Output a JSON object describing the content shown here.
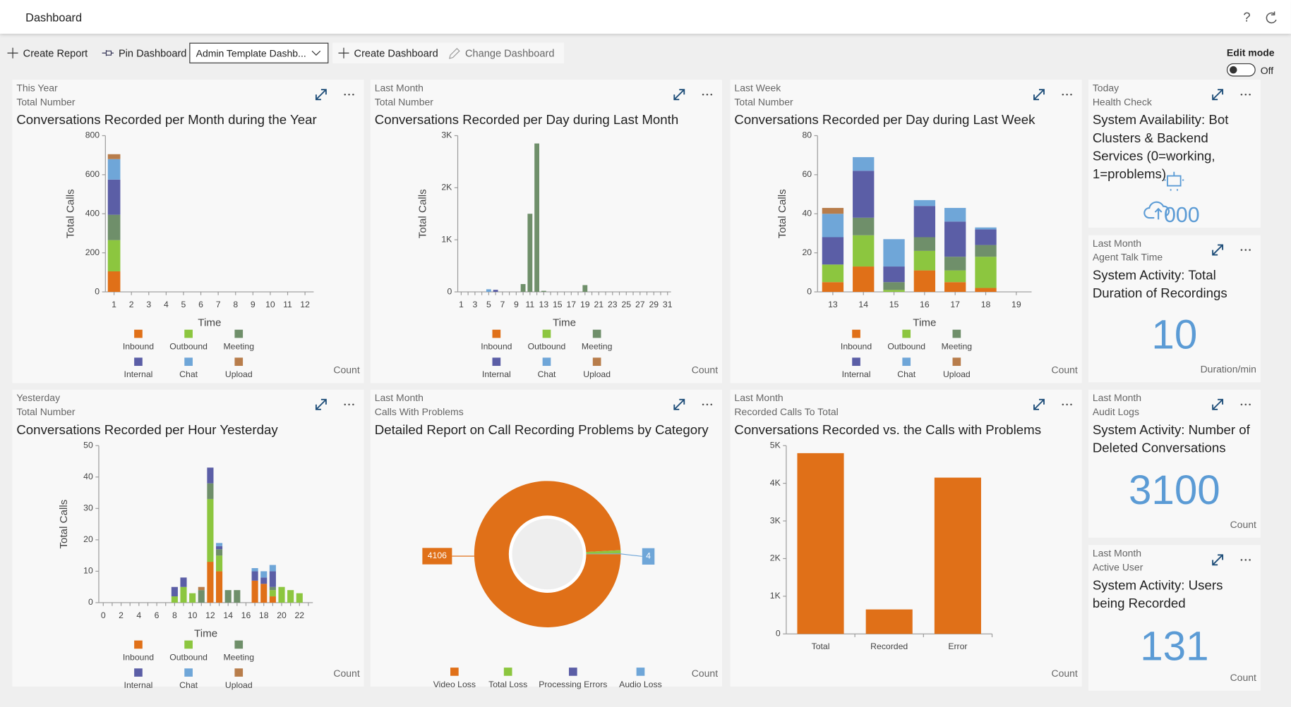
{
  "header": {
    "title": "Dashboard"
  },
  "toolbar": {
    "create_report": "Create Report",
    "pin_dashboard": "Pin Dashboard",
    "dashboard_select": "Admin Template Dashb...",
    "create_dashboard": "Create Dashboard",
    "change_dashboard": "Change Dashboard",
    "edit_mode": "Edit mode",
    "edit_state": "Off"
  },
  "chart_data": [
    {
      "type": "bar",
      "stacked": true,
      "period": "This Year",
      "metric": "Total Number",
      "title": "Conversations Recorded per Month during the Year",
      "x_label": "Time",
      "y_label": "Total Calls",
      "unit": "Count",
      "categories": [
        1,
        2,
        3,
        4,
        5,
        6,
        7,
        8,
        9,
        10,
        11,
        12
      ],
      "series": [
        {
          "name": "Inbound",
          "color": "#e07018",
          "values": [
            105,
            0,
            0,
            0,
            0,
            0,
            0,
            0,
            0,
            0,
            0,
            0
          ]
        },
        {
          "name": "Outbound",
          "color": "#8cc63f",
          "values": [
            160,
            0,
            0,
            0,
            0,
            0,
            0,
            0,
            0,
            0,
            0,
            0
          ]
        },
        {
          "name": "Meeting",
          "color": "#6f8f6a",
          "values": [
            130,
            0,
            0,
            0,
            0,
            0,
            0,
            0,
            0,
            0,
            0,
            0
          ]
        },
        {
          "name": "Internal",
          "color": "#5b5ea6",
          "values": [
            180,
            0,
            0,
            0,
            0,
            0,
            0,
            0,
            0,
            0,
            0,
            0
          ]
        },
        {
          "name": "Chat",
          "color": "#6fa6d8",
          "values": [
            105,
            0,
            0,
            0,
            0,
            0,
            0,
            0,
            0,
            0,
            0,
            0
          ]
        },
        {
          "name": "Upload",
          "color": "#b87d4b",
          "values": [
            25,
            0,
            0,
            0,
            0,
            0,
            0,
            0,
            0,
            0,
            0,
            0
          ]
        }
      ],
      "ylim": [
        0,
        800
      ],
      "yticks": [
        0,
        200,
        400,
        600,
        800
      ],
      "grid": false
    },
    {
      "type": "bar",
      "stacked": true,
      "period": "Last Month",
      "metric": "Total Number",
      "title": "Conversations Recorded per Day during Last Month",
      "x_label": "Time",
      "y_label": "Total Calls",
      "unit": "Count",
      "categories": [
        1,
        null,
        3,
        null,
        5,
        null,
        7,
        null,
        9,
        null,
        11,
        null,
        13,
        null,
        15,
        null,
        17,
        null,
        19,
        null,
        21,
        null,
        23,
        null,
        25,
        null,
        27,
        null,
        29,
        null,
        31
      ],
      "series": [
        {
          "name": "Inbound",
          "color": "#e07018",
          "values": [
            0,
            0,
            0,
            0,
            0,
            0,
            0,
            0,
            0,
            0,
            0,
            0,
            0,
            0,
            0,
            0,
            0,
            0,
            0,
            0,
            0,
            0,
            0,
            0,
            0,
            0,
            0,
            0,
            0,
            0,
            0
          ]
        },
        {
          "name": "Outbound",
          "color": "#8cc63f",
          "values": [
            0,
            0,
            0,
            0,
            0,
            0,
            0,
            0,
            0,
            0,
            0,
            0,
            0,
            0,
            0,
            0,
            0,
            0,
            0,
            0,
            0,
            0,
            0,
            0,
            0,
            0,
            0,
            0,
            0,
            0,
            0
          ]
        },
        {
          "name": "Meeting",
          "color": "#6f8f6a",
          "values": [
            0,
            0,
            0,
            0,
            0,
            0,
            0,
            0,
            0,
            150,
            1500,
            2850,
            20,
            0,
            0,
            0,
            0,
            0,
            130,
            0,
            0,
            0,
            0,
            0,
            0,
            0,
            0,
            0,
            0,
            0,
            0
          ]
        },
        {
          "name": "Internal",
          "color": "#5b5ea6",
          "values": [
            0,
            0,
            0,
            0,
            0,
            40,
            0,
            0,
            0,
            0,
            0,
            0,
            0,
            0,
            0,
            0,
            0,
            0,
            0,
            0,
            0,
            0,
            0,
            0,
            0,
            0,
            0,
            0,
            0,
            0,
            0
          ]
        },
        {
          "name": "Chat",
          "color": "#6fa6d8",
          "values": [
            0,
            0,
            0,
            0,
            50,
            0,
            0,
            0,
            0,
            0,
            0,
            0,
            0,
            0,
            0,
            0,
            0,
            0,
            0,
            0,
            0,
            0,
            0,
            0,
            0,
            0,
            0,
            0,
            0,
            0,
            0
          ]
        },
        {
          "name": "Upload",
          "color": "#b87d4b",
          "values": [
            0,
            0,
            0,
            0,
            0,
            0,
            0,
            0,
            0,
            0,
            0,
            0,
            0,
            0,
            0,
            0,
            0,
            0,
            0,
            0,
            0,
            0,
            0,
            0,
            0,
            0,
            0,
            0,
            0,
            0,
            0
          ]
        }
      ],
      "ylim": [
        0,
        3000
      ],
      "yticks": [
        0,
        {
          "value": 1000,
          "label": "1K"
        },
        {
          "value": 2000,
          "label": "2K"
        },
        {
          "value": 3000,
          "label": "3K"
        }
      ],
      "grid": false
    },
    {
      "type": "bar",
      "stacked": true,
      "period": "Last Week",
      "metric": "Total Number",
      "title": "Conversations Recorded per Day during Last Week",
      "x_label": "Time",
      "y_label": "Total Calls",
      "unit": "Count",
      "categories": [
        13,
        14,
        15,
        16,
        17,
        18,
        19
      ],
      "series": [
        {
          "name": "Inbound",
          "color": "#e07018",
          "values": [
            5,
            13,
            0,
            11,
            5,
            2,
            0
          ]
        },
        {
          "name": "Outbound",
          "color": "#8cc63f",
          "values": [
            9,
            16,
            1,
            10,
            6,
            16,
            0
          ]
        },
        {
          "name": "Meeting",
          "color": "#6f8f6a",
          "values": [
            0,
            9,
            4,
            7,
            7,
            6,
            0
          ]
        },
        {
          "name": "Internal",
          "color": "#5b5ea6",
          "values": [
            14,
            24,
            8,
            16,
            18,
            8,
            0
          ]
        },
        {
          "name": "Chat",
          "color": "#6fa6d8",
          "values": [
            12,
            7,
            14,
            3,
            7,
            1,
            0
          ]
        },
        {
          "name": "Upload",
          "color": "#b87d4b",
          "values": [
            3,
            0,
            0,
            0,
            0,
            0,
            0
          ]
        }
      ],
      "ylim": [
        0,
        80
      ],
      "yticks": [
        0,
        20,
        40,
        60,
        80
      ],
      "grid": false
    },
    {
      "type": "bar",
      "stacked": true,
      "period": "Yesterday",
      "metric": "Total Number",
      "title": "Conversations Recorded per Hour Yesterday",
      "x_label": "Time",
      "y_label": "Total Calls",
      "unit": "Count",
      "categories": [
        0,
        null,
        2,
        null,
        4,
        null,
        6,
        null,
        8,
        null,
        10,
        null,
        12,
        null,
        14,
        null,
        16,
        null,
        18,
        null,
        20,
        null,
        22,
        null
      ],
      "series": [
        {
          "name": "Inbound",
          "color": "#e07018",
          "values": [
            0,
            0,
            0,
            0,
            0,
            0,
            0,
            0,
            0,
            0,
            0,
            0,
            13,
            10,
            0,
            0,
            0,
            7,
            6,
            2,
            0,
            0,
            0,
            0
          ]
        },
        {
          "name": "Outbound",
          "color": "#8cc63f",
          "values": [
            0,
            0,
            0,
            0,
            0,
            0,
            0,
            0,
            2,
            5,
            3,
            0,
            20,
            5,
            0,
            0,
            0,
            0,
            0,
            2,
            5,
            4,
            3,
            0
          ]
        },
        {
          "name": "Meeting",
          "color": "#6f8f6a",
          "values": [
            0,
            0,
            0,
            0,
            0,
            0,
            0,
            0,
            0,
            0,
            0,
            4,
            5,
            2,
            4,
            4,
            0,
            0,
            0,
            1,
            0,
            0,
            0,
            0
          ]
        },
        {
          "name": "Internal",
          "color": "#5b5ea6",
          "values": [
            0,
            0,
            0,
            0,
            0,
            0,
            0,
            0,
            3,
            3,
            0,
            0,
            5,
            1,
            0,
            0,
            0,
            3,
            2,
            5,
            0,
            0,
            0,
            0
          ]
        },
        {
          "name": "Chat",
          "color": "#6fa6d8",
          "values": [
            0,
            0,
            0,
            0,
            0,
            0,
            0,
            0,
            0,
            0,
            0,
            0,
            0,
            1,
            0,
            0,
            0,
            1,
            2,
            2,
            0,
            0,
            0,
            0
          ]
        },
        {
          "name": "Upload",
          "color": "#b87d4b",
          "values": [
            0,
            0,
            0,
            0,
            0,
            0,
            0,
            0,
            0,
            0,
            0,
            1,
            0,
            0,
            0,
            0,
            0,
            0,
            0,
            0,
            0,
            0,
            0,
            0
          ]
        }
      ],
      "ylim": [
        0,
        50
      ],
      "yticks": [
        0,
        10,
        20,
        30,
        40,
        50
      ],
      "grid": false
    },
    {
      "type": "pie",
      "donut": true,
      "period": "Last Month",
      "metric": "Calls With Problems",
      "title": "Detailed Report on Call Recording Problems by Category",
      "unit": "Count",
      "categories": [
        "Video Loss",
        "Total Loss",
        "Processing Errors",
        "Audio Loss"
      ],
      "values": [
        4106,
        30,
        2,
        4
      ],
      "value_labels": [
        "4106",
        null,
        null,
        "4"
      ],
      "colors": [
        "#e07018",
        "#8cc63f",
        "#5b5ea6",
        "#6fa6d8"
      ]
    },
    {
      "type": "bar",
      "stacked": false,
      "period": "Last Month",
      "metric": "Recorded Calls To Total",
      "title": "Conversations Recorded vs. the Calls with Problems",
      "unit": "Count",
      "categories": [
        "Total",
        "Recorded",
        "Error"
      ],
      "values": [
        4800,
        650,
        4150
      ],
      "color": "#e07018",
      "ylim": [
        0,
        5000
      ],
      "yticks": [
        0,
        {
          "value": 1000,
          "label": "1K"
        },
        {
          "value": 2000,
          "label": "2K"
        },
        {
          "value": 3000,
          "label": "3K"
        },
        {
          "value": 4000,
          "label": "4K"
        },
        {
          "value": 5000,
          "label": "5K"
        }
      ],
      "grid": false
    }
  ],
  "kpis": [
    {
      "period": "Today",
      "metric": "Health Check",
      "title": "System Availability: Bot Clusters & Backend Services (0=working, 1=problems)",
      "value": "000"
    },
    {
      "period": "Last Month",
      "metric": "Agent Talk Time",
      "title": "System Activity: Total Duration of Recordings",
      "value": 10,
      "unit": "Duration/min"
    },
    {
      "period": "Last Month",
      "metric": "Audit Logs",
      "title": "System Activity: Number of Deleted Conversations",
      "value": 3100,
      "unit": "Count"
    },
    {
      "period": "Last Month",
      "metric": "Active User",
      "title": "System Activity: Users being Recorded",
      "value": 131,
      "unit": "Count"
    }
  ]
}
